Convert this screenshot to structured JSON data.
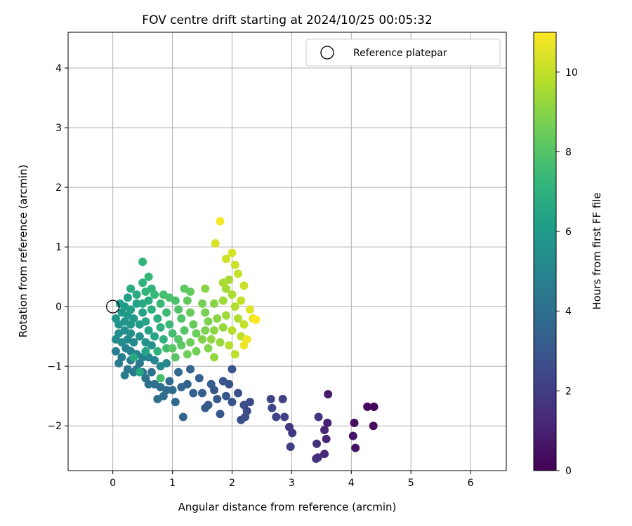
{
  "chart_data": {
    "type": "scatter",
    "title": "FOV centre drift starting at 2024/10/25 00:05:32",
    "xlabel": "Angular distance from reference (arcmin)",
    "ylabel": "Rotation from reference (arcmin)",
    "xlim": [
      -0.75,
      6.6
    ],
    "ylim": [
      -2.75,
      4.6
    ],
    "xticks": [
      0,
      1,
      2,
      3,
      4,
      5,
      6
    ],
    "yticks": [
      -2,
      -1,
      0,
      1,
      2,
      3,
      4
    ],
    "grid": true,
    "legend": {
      "placement": "top-right",
      "entries": [
        "Reference platepar"
      ]
    },
    "reference_point": {
      "name": "Reference platepar",
      "x": 0,
      "y": 0
    },
    "colorbar": {
      "label": "Hours from first FF file",
      "colormap": "viridis",
      "range": [
        0,
        11
      ],
      "ticks": [
        0,
        2,
        4,
        6,
        8,
        10
      ]
    },
    "colors": [
      "#440154",
      "#482878",
      "#3e4989",
      "#31688e",
      "#26828e",
      "#1f9e89",
      "#35b779",
      "#6ece58",
      "#b5de2b",
      "#fde725"
    ],
    "point_columns": [
      "x",
      "y",
      "hours"
    ],
    "points": [
      [
        4.38,
        -1.68,
        0.1
      ],
      [
        4.27,
        -1.68,
        0.2
      ],
      [
        4.37,
        -2.0,
        0.3
      ],
      [
        4.05,
        -1.95,
        0.4
      ],
      [
        4.07,
        -2.37,
        0.5
      ],
      [
        4.03,
        -2.17,
        0.6
      ],
      [
        3.61,
        -1.47,
        0.8
      ],
      [
        3.6,
        -1.95,
        1.0
      ],
      [
        3.58,
        -2.22,
        1.1
      ],
      [
        3.55,
        -2.07,
        1.2
      ],
      [
        3.55,
        -2.47,
        1.3
      ],
      [
        3.44,
        -2.53,
        1.4
      ],
      [
        3.41,
        -2.55,
        1.5
      ],
      [
        3.42,
        -2.3,
        1.6
      ],
      [
        3.45,
        -1.85,
        1.7
      ],
      [
        2.96,
        -2.02,
        1.8
      ],
      [
        3.01,
        -2.12,
        1.9
      ],
      [
        2.98,
        -2.35,
        2.0
      ],
      [
        2.85,
        -1.55,
        2.1
      ],
      [
        2.88,
        -1.85,
        2.1
      ],
      [
        2.74,
        -1.85,
        2.2
      ],
      [
        2.65,
        -1.55,
        2.3
      ],
      [
        2.67,
        -1.7,
        2.4
      ],
      [
        2.3,
        -1.6,
        2.5
      ],
      [
        2.25,
        -1.75,
        2.5
      ],
      [
        2.2,
        -1.65,
        2.6
      ],
      [
        2.22,
        -1.85,
        2.6
      ],
      [
        2.15,
        -1.9,
        2.7
      ],
      [
        2.1,
        -1.45,
        2.7
      ],
      [
        2.0,
        -1.6,
        2.8
      ],
      [
        1.95,
        -1.3,
        2.8
      ],
      [
        2.0,
        -1.05,
        2.9
      ],
      [
        1.85,
        -1.25,
        2.9
      ],
      [
        1.9,
        -1.5,
        3.0
      ],
      [
        1.8,
        -1.8,
        3.0
      ],
      [
        1.75,
        -1.55,
        3.1
      ],
      [
        1.7,
        -1.4,
        3.1
      ],
      [
        1.6,
        -1.65,
        3.2
      ],
      [
        1.55,
        -1.7,
        3.2
      ],
      [
        1.65,
        -1.3,
        3.3
      ],
      [
        1.5,
        -1.45,
        3.3
      ],
      [
        1.45,
        -1.2,
        3.4
      ],
      [
        1.35,
        -1.45,
        3.4
      ],
      [
        1.3,
        -1.05,
        3.5
      ],
      [
        1.25,
        -1.3,
        3.5
      ],
      [
        1.18,
        -1.85,
        3.6
      ],
      [
        1.15,
        -1.35,
        3.6
      ],
      [
        1.05,
        -1.6,
        3.7
      ],
      [
        1.1,
        -1.1,
        3.7
      ],
      [
        1.0,
        -1.4,
        3.8
      ],
      [
        0.95,
        -1.25,
        3.8
      ],
      [
        0.9,
        -1.4,
        3.9
      ],
      [
        0.85,
        -1.5,
        3.9
      ],
      [
        0.75,
        -1.55,
        4.0
      ],
      [
        0.8,
        -1.35,
        4.0
      ],
      [
        0.7,
        -1.3,
        4.1
      ],
      [
        0.6,
        -1.3,
        4.1
      ],
      [
        0.55,
        -1.2,
        4.2
      ],
      [
        0.65,
        -1.1,
        4.2
      ],
      [
        0.5,
        -1.1,
        4.3
      ],
      [
        0.45,
        -0.95,
        4.3
      ],
      [
        0.4,
        -1.05,
        4.4
      ],
      [
        0.35,
        -1.1,
        4.4
      ],
      [
        0.3,
        -0.9,
        4.5
      ],
      [
        0.25,
        -1.05,
        4.5
      ],
      [
        0.2,
        -1.15,
        4.6
      ],
      [
        0.1,
        -0.95,
        4.6
      ],
      [
        0.15,
        -0.85,
        4.7
      ],
      [
        0.05,
        -0.75,
        4.7
      ],
      [
        0.22,
        -0.7,
        4.8
      ],
      [
        0.3,
        -0.75,
        4.8
      ],
      [
        0.4,
        -0.8,
        4.9
      ],
      [
        0.5,
        -0.85,
        4.9
      ],
      [
        0.6,
        -0.85,
        5.0
      ],
      [
        0.7,
        -0.9,
        5.0
      ],
      [
        0.8,
        -1.0,
        5.1
      ],
      [
        0.9,
        -0.95,
        5.1
      ],
      [
        0.35,
        -0.6,
        5.2
      ],
      [
        0.25,
        -0.55,
        5.2
      ],
      [
        0.15,
        -0.6,
        5.3
      ],
      [
        0.05,
        -0.55,
        5.3
      ],
      [
        0.1,
        -0.45,
        5.4
      ],
      [
        0.2,
        -0.4,
        5.4
      ],
      [
        0.3,
        -0.45,
        5.5
      ],
      [
        0.45,
        -0.5,
        5.5
      ],
      [
        0.55,
        -0.6,
        5.6
      ],
      [
        0.65,
        -0.65,
        5.6
      ],
      [
        0.1,
        -0.3,
        5.7
      ],
      [
        0.2,
        -0.25,
        5.7
      ],
      [
        0.3,
        -0.3,
        5.8
      ],
      [
        0.05,
        -0.2,
        5.8
      ],
      [
        0.15,
        -0.1,
        5.9
      ],
      [
        0.25,
        -0.15,
        5.9
      ],
      [
        0.35,
        -0.2,
        6.0
      ],
      [
        0.45,
        -0.3,
        6.0
      ],
      [
        0.12,
        0.05,
        6.1
      ],
      [
        0.2,
        0.0,
        6.1
      ],
      [
        0.3,
        -0.05,
        6.2
      ],
      [
        0.25,
        0.15,
        6.2
      ],
      [
        0.4,
        0.05,
        6.3
      ],
      [
        0.5,
        -0.1,
        6.3
      ],
      [
        0.55,
        -0.25,
        6.4
      ],
      [
        0.6,
        -0.4,
        6.4
      ],
      [
        0.7,
        -0.5,
        6.5
      ],
      [
        0.55,
        -0.75,
        6.5
      ],
      [
        0.45,
        -1.1,
        6.6
      ],
      [
        0.35,
        -0.85,
        6.6
      ],
      [
        0.5,
        0.05,
        6.7
      ],
      [
        0.4,
        0.2,
        6.7
      ],
      [
        0.3,
        0.3,
        6.8
      ],
      [
        0.6,
        0.1,
        6.8
      ],
      [
        0.65,
        -0.05,
        6.9
      ],
      [
        0.75,
        -0.2,
        6.9
      ],
      [
        0.8,
        -0.35,
        7.0
      ],
      [
        0.85,
        -0.55,
        7.0
      ],
      [
        0.75,
        -0.75,
        7.1
      ],
      [
        0.5,
        0.4,
        7.1
      ],
      [
        0.55,
        0.25,
        7.2
      ],
      [
        0.65,
        0.3,
        7.2
      ],
      [
        0.5,
        0.75,
        7.3
      ],
      [
        0.6,
        0.5,
        7.3
      ],
      [
        0.7,
        0.2,
        7.4
      ],
      [
        0.8,
        0.05,
        7.4
      ],
      [
        0.9,
        -0.1,
        7.5
      ],
      [
        0.95,
        -0.3,
        7.5
      ],
      [
        1.0,
        -0.45,
        7.6
      ],
      [
        0.9,
        -0.7,
        7.6
      ],
      [
        0.8,
        -1.2,
        7.7
      ],
      [
        0.85,
        0.2,
        7.7
      ],
      [
        0.95,
        0.15,
        7.8
      ],
      [
        1.05,
        0.1,
        7.8
      ],
      [
        1.1,
        -0.05,
        7.9
      ],
      [
        1.15,
        -0.2,
        7.9
      ],
      [
        1.2,
        -0.4,
        8.0
      ],
      [
        1.1,
        -0.55,
        8.0
      ],
      [
        1.0,
        -0.7,
        8.1
      ],
      [
        1.05,
        -0.85,
        8.1
      ],
      [
        1.15,
        -0.65,
        8.2
      ],
      [
        1.2,
        0.3,
        8.2
      ],
      [
        1.3,
        0.25,
        8.3
      ],
      [
        1.25,
        0.1,
        8.3
      ],
      [
        1.3,
        -0.1,
        8.4
      ],
      [
        1.35,
        -0.3,
        8.4
      ],
      [
        1.4,
        -0.45,
        8.5
      ],
      [
        1.3,
        -0.6,
        8.5
      ],
      [
        1.25,
        -0.8,
        8.6
      ],
      [
        1.4,
        -0.75,
        8.6
      ],
      [
        1.5,
        0.05,
        8.7
      ],
      [
        1.55,
        -0.1,
        8.7
      ],
      [
        1.6,
        -0.25,
        8.8
      ],
      [
        1.55,
        -0.4,
        8.8
      ],
      [
        1.5,
        -0.55,
        8.9
      ],
      [
        1.6,
        -0.7,
        8.9
      ],
      [
        1.55,
        0.3,
        9.0
      ],
      [
        1.7,
        0.05,
        9.0
      ],
      [
        1.75,
        -0.2,
        9.1
      ],
      [
        1.7,
        -0.4,
        9.1
      ],
      [
        1.65,
        -0.55,
        9.2
      ],
      [
        1.7,
        -0.85,
        9.2
      ],
      [
        1.8,
        -0.6,
        9.3
      ],
      [
        1.85,
        -0.35,
        9.3
      ],
      [
        1.9,
        -0.15,
        9.4
      ],
      [
        1.85,
        0.1,
        9.4
      ],
      [
        1.9,
        0.3,
        9.5
      ],
      [
        1.95,
        0.45,
        9.5
      ],
      [
        1.85,
        0.4,
        9.6
      ],
      [
        2.0,
        0.2,
        9.6
      ],
      [
        2.05,
        0.0,
        9.7
      ],
      [
        2.1,
        -0.2,
        9.7
      ],
      [
        2.0,
        -0.4,
        9.8
      ],
      [
        1.95,
        -0.65,
        9.8
      ],
      [
        2.05,
        -0.8,
        9.9
      ],
      [
        2.15,
        -0.5,
        9.9
      ],
      [
        2.2,
        -0.3,
        10.0
      ],
      [
        2.15,
        0.1,
        10.0
      ],
      [
        2.2,
        0.35,
        10.1
      ],
      [
        2.1,
        0.55,
        10.1
      ],
      [
        2.05,
        0.7,
        10.2
      ],
      [
        1.9,
        0.8,
        10.2
      ],
      [
        2.0,
        0.9,
        10.3
      ],
      [
        1.72,
        1.06,
        10.4
      ],
      [
        2.3,
        -0.05,
        10.5
      ],
      [
        2.35,
        -0.2,
        10.6
      ],
      [
        2.2,
        -0.65,
        10.7
      ],
      [
        2.25,
        -0.55,
        10.8
      ],
      [
        1.8,
        1.43,
        10.9
      ],
      [
        2.4,
        -0.22,
        11.0
      ]
    ]
  }
}
